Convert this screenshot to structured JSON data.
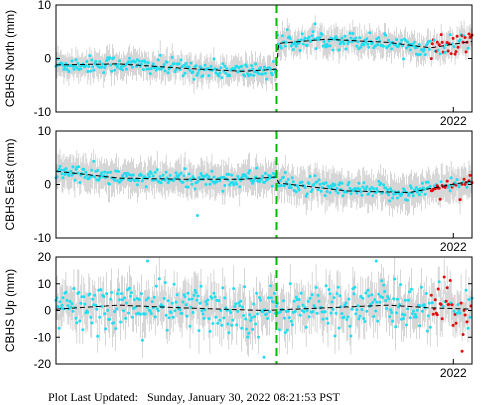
{
  "footer": {
    "label": "Plot Last Updated:",
    "timestamp": "Sunday, January 30, 2022 08:21:53 PST"
  },
  "colors": {
    "data": "#22ddf0",
    "recent": "#e01010",
    "errorbar": "#cccccc",
    "trend": "#000000",
    "offset_line": "#00bb00"
  },
  "chart_data": [
    {
      "type": "scatter",
      "ylabel": "CBHS North (mm)",
      "ylim": [
        -10,
        10
      ],
      "yticks": [
        "10",
        "0",
        "-10"
      ],
      "xtick_label": "2022",
      "offset_at_fraction": 0.53,
      "trend": [
        {
          "t": 0.0,
          "y": -1.2
        },
        {
          "t": 0.15,
          "y": -1.0
        },
        {
          "t": 0.3,
          "y": -1.8
        },
        {
          "t": 0.45,
          "y": -2.4
        },
        {
          "t": 0.53,
          "y": -2.0
        },
        {
          "t": 0.531,
          "y": 2.8
        },
        {
          "t": 0.65,
          "y": 3.6
        },
        {
          "t": 0.8,
          "y": 3.0
        },
        {
          "t": 0.9,
          "y": 2.0
        },
        {
          "t": 1.0,
          "y": 3.2
        }
      ],
      "noise": 0.8,
      "errbar": 2.2,
      "outliers": []
    },
    {
      "type": "scatter",
      "ylabel": "CBHS East (mm)",
      "ylim": [
        -10,
        10
      ],
      "yticks": [
        "10",
        "0",
        "-10"
      ],
      "xtick_label": "2022",
      "offset_at_fraction": 0.53,
      "trend": [
        {
          "t": 0.0,
          "y": 2.5
        },
        {
          "t": 0.15,
          "y": 1.2
        },
        {
          "t": 0.3,
          "y": 1.0
        },
        {
          "t": 0.45,
          "y": 1.0
        },
        {
          "t": 0.53,
          "y": 1.4
        },
        {
          "t": 0.531,
          "y": 0.3
        },
        {
          "t": 0.7,
          "y": -1.2
        },
        {
          "t": 0.85,
          "y": -1.5
        },
        {
          "t": 0.95,
          "y": 0.0
        },
        {
          "t": 1.0,
          "y": 0.6
        }
      ],
      "noise": 0.8,
      "errbar": 2.8,
      "outliers": [
        {
          "t": 0.34,
          "y": -5.8
        }
      ]
    },
    {
      "type": "scatter",
      "ylabel": "CBHS Up (mm)",
      "ylim": [
        -20,
        20
      ],
      "yticks": [
        "20",
        "10",
        "0",
        "-10",
        "-20"
      ],
      "xtick_label": "2022",
      "offset_at_fraction": 0.53,
      "trend": [
        {
          "t": 0.0,
          "y": 0.5
        },
        {
          "t": 0.15,
          "y": 2.0
        },
        {
          "t": 0.3,
          "y": 1.0
        },
        {
          "t": 0.5,
          "y": 0.0
        },
        {
          "t": 0.65,
          "y": 1.0
        },
        {
          "t": 0.8,
          "y": 2.0
        },
        {
          "t": 0.9,
          "y": 1.0
        },
        {
          "t": 1.0,
          "y": 0.5
        }
      ],
      "noise": 4.5,
      "errbar": 7.0,
      "outliers": [
        {
          "t": 0.22,
          "y": 18.5
        },
        {
          "t": 0.77,
          "y": 18.5
        },
        {
          "t": 0.5,
          "y": -17.5
        }
      ]
    }
  ]
}
